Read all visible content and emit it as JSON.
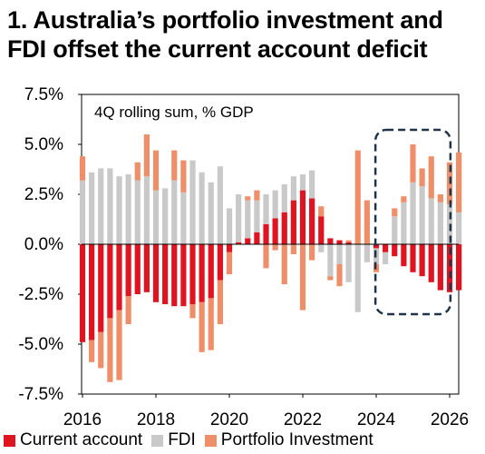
{
  "title_lines": [
    "1. Australia’s portfolio investment and",
    "FDI offset the current account deficit"
  ],
  "colors": {
    "current_account": "#e01420",
    "fdi": "#c9c9c9",
    "portfolio": "#ef8f6a",
    "highlight": "#1f3349"
  },
  "chart_data": {
    "type": "bar",
    "stacked": true,
    "annotation": "4Q rolling sum, % GDP",
    "ylim": [
      -7.5,
      7.5
    ],
    "yticks": [
      7.5,
      5.0,
      2.5,
      0.0,
      -2.5,
      -5.0,
      -7.5
    ],
    "ytick_labels": [
      "7.5%",
      "5.0%",
      "2.5%",
      "0.0%",
      "-2.5%",
      "-5.0%",
      "-7.5%"
    ],
    "xticks": [
      "2016",
      "2018",
      "2020",
      "2022",
      "2024",
      "2026"
    ],
    "x_start": 2016.0,
    "x_step": 0.25,
    "highlight_range": [
      2024.25,
      2025.75
    ],
    "series": [
      {
        "name": "Current account",
        "color": "#e01420",
        "values": [
          -4.9,
          -4.8,
          -4.4,
          -3.7,
          -3.3,
          -2.6,
          -2.5,
          -2.4,
          -2.9,
          -3.0,
          -3.1,
          -3.1,
          -3.0,
          -2.9,
          -2.7,
          -1.8,
          -0.4,
          0.1,
          0.3,
          0.6,
          1.0,
          1.3,
          1.6,
          2.2,
          2.7,
          2.3,
          1.4,
          0.3,
          0.2,
          0.1,
          0.0,
          0.0,
          -0.2,
          -0.4,
          -0.6,
          -1.1,
          -1.4,
          -1.6,
          -1.9,
          -2.3,
          -2.4,
          -2.3
        ]
      },
      {
        "name": "FDI",
        "color": "#c9c9c9",
        "values": [
          3.2,
          3.6,
          3.8,
          3.8,
          3.4,
          3.5,
          3.2,
          3.4,
          2.7,
          2.8,
          3.2,
          2.6,
          4.2,
          3.6,
          3.1,
          3.9,
          1.8,
          2.4,
          1.9,
          1.6,
          1.5,
          1.4,
          1.4,
          1.2,
          0.8,
          1.4,
          -0.4,
          -1.6,
          -1.0,
          -1.9,
          -3.4,
          -0.9,
          -0.8,
          -0.6,
          1.4,
          2.1,
          3.1,
          2.9,
          2.3,
          2.1,
          2.0,
          1.6
        ]
      },
      {
        "name": "Portfolio Investment",
        "color": "#ef8f6a",
        "values": [
          1.2,
          -1.1,
          -1.8,
          -3.2,
          -3.5,
          -1.4,
          0.9,
          2.1,
          2.0,
          0.0,
          1.5,
          1.6,
          -0.7,
          -2.5,
          -2.6,
          -2.2,
          -1.1,
          0.0,
          0.2,
          0.5,
          -1.2,
          -0.3,
          -2.0,
          -0.5,
          -3.3,
          -0.8,
          0.5,
          -0.2,
          -1.1,
          0.1,
          4.7,
          2.2,
          -0.4,
          0.0,
          0.4,
          0.3,
          1.9,
          0.9,
          2.1,
          0.4,
          2.1,
          3.0
        ]
      }
    ]
  },
  "legend": [
    {
      "label": "Current account",
      "color": "#e01420"
    },
    {
      "label": "FDI",
      "color": "#c9c9c9"
    },
    {
      "label": "Portfolio Investment",
      "color": "#ef8f6a"
    }
  ]
}
